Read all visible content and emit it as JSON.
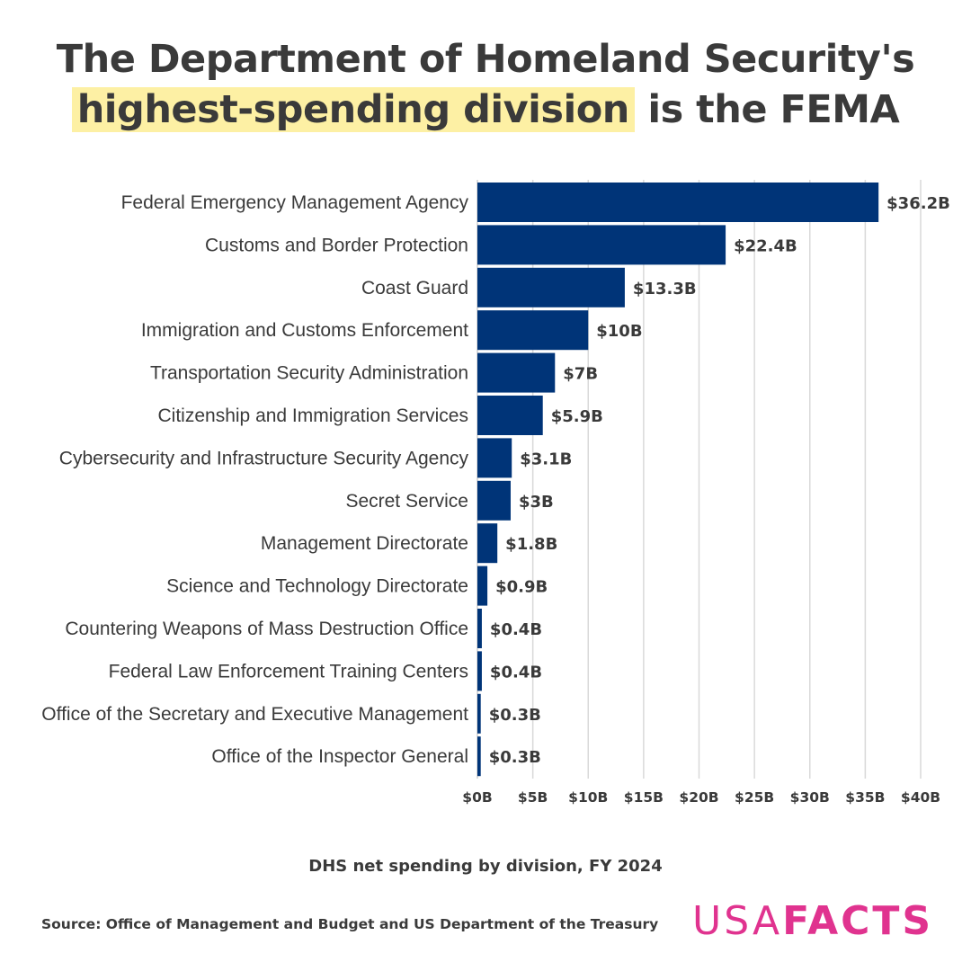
{
  "title": {
    "line1": "The Department of Homeland Security's",
    "highlight": "highest-spending division",
    "rest": " is the FEMA"
  },
  "chart_data": {
    "type": "bar",
    "orientation": "horizontal",
    "categories": [
      "Federal Emergency Management Agency",
      "Customs and Border Protection",
      "Coast Guard",
      "Immigration and Customs Enforcement",
      "Transportation Security Administration",
      "Citizenship and Immigration Services",
      "Cybersecurity and Infrastructure Security Agency",
      "Secret Service",
      "Management Directorate",
      "Science and Technology Directorate",
      "Countering Weapons of Mass Destruction Office",
      "Federal Law Enforcement Training Centers",
      "Office of the Secretary and Executive Management",
      "Office of the Inspector General"
    ],
    "values": [
      36.2,
      22.4,
      13.3,
      10,
      7,
      5.9,
      3.1,
      3,
      1.8,
      0.9,
      0.4,
      0.4,
      0.3,
      0.3
    ],
    "value_labels": [
      "$36.2B",
      "$22.4B",
      "$13.3B",
      "$10B",
      "$7B",
      "$5.9B",
      "$3.1B",
      "$3B",
      "$1.8B",
      "$0.9B",
      "$0.4B",
      "$0.4B",
      "$0.3B",
      "$0.3B"
    ],
    "x_ticks": [
      0,
      5,
      10,
      15,
      20,
      25,
      30,
      35,
      40
    ],
    "x_tick_labels": [
      "$0B",
      "$5B",
      "$10B",
      "$15B",
      "$20B",
      "$25B",
      "$30B",
      "$35B",
      "$40B"
    ],
    "xlim": [
      0,
      40
    ],
    "grid": true,
    "bar_color": "#003478",
    "caption": "DHS net spending by division, FY 2024"
  },
  "source": "Source: Office of Management and Budget and US Department of the Treasury",
  "logo": {
    "part1": "USA",
    "part2": "FACTS",
    "color": "#e0338f"
  }
}
